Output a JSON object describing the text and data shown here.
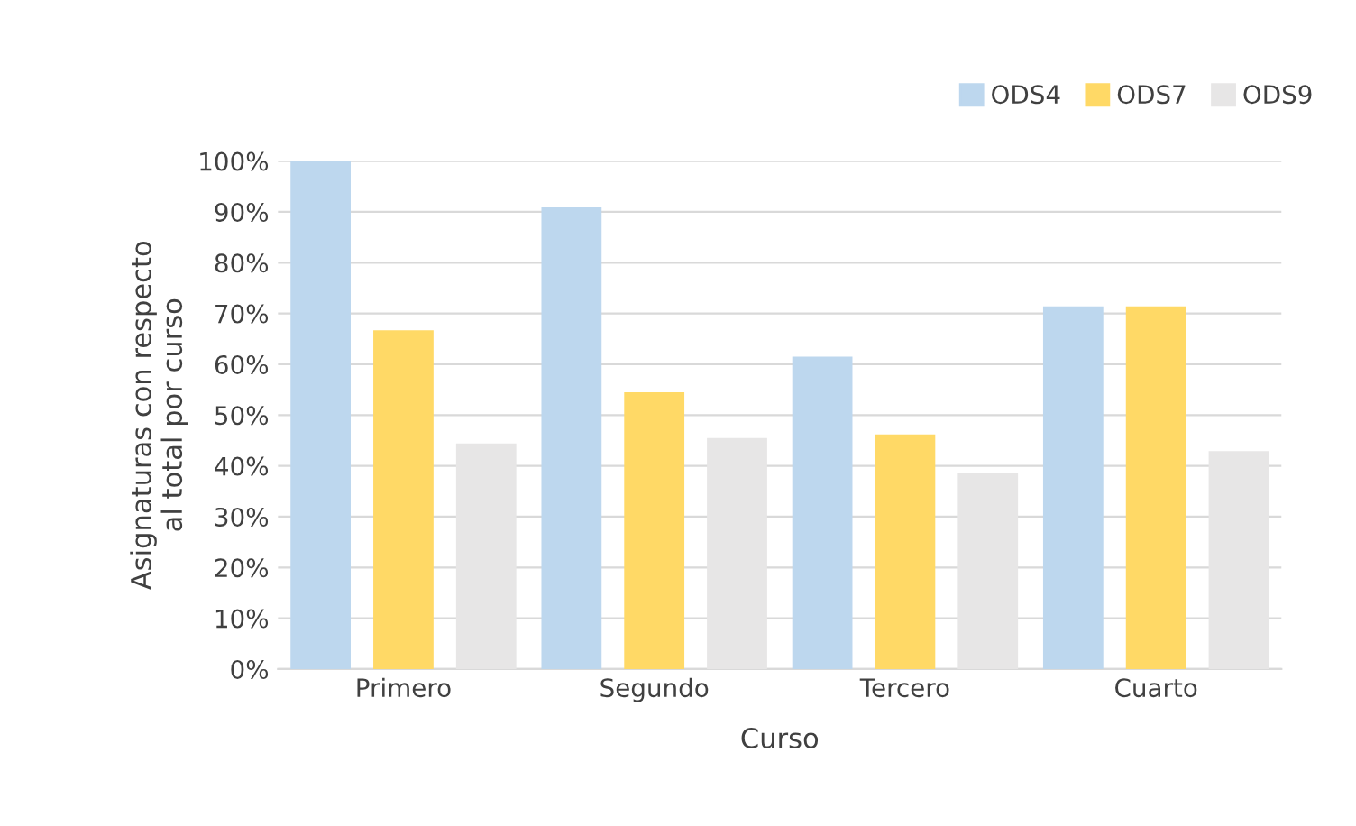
{
  "chart_data": {
    "type": "bar",
    "xlabel": "Curso",
    "ylabel": "Asignaturas con respecto\nal total por curso",
    "categories": [
      "Primero",
      "Segundo",
      "Tercero",
      "Cuarto"
    ],
    "series": [
      {
        "name": "ODS4",
        "color": "#bdd7ee",
        "values": [
          100,
          90.9,
          61.5,
          71.4
        ]
      },
      {
        "name": "ODS7",
        "color": "#ffd966",
        "values": [
          66.7,
          54.5,
          46.2,
          71.4
        ]
      },
      {
        "name": "ODS9",
        "color": "#e7e6e6",
        "values": [
          44.4,
          45.5,
          38.5,
          42.9
        ]
      }
    ],
    "ylim": [
      0,
      100
    ],
    "yticks": [
      {
        "value": 0,
        "label": "0%"
      },
      {
        "value": 10,
        "label": "10%"
      },
      {
        "value": 20,
        "label": "20%"
      },
      {
        "value": 30,
        "label": "30%"
      },
      {
        "value": 40,
        "label": "40%"
      },
      {
        "value": 50,
        "label": "50%"
      },
      {
        "value": 60,
        "label": "60%"
      },
      {
        "value": 70,
        "label": "70%"
      },
      {
        "value": 80,
        "label": "80%"
      },
      {
        "value": 90,
        "label": "90%"
      },
      {
        "value": 100,
        "label": "100%"
      }
    ],
    "grid": "y",
    "legend": "top right"
  }
}
